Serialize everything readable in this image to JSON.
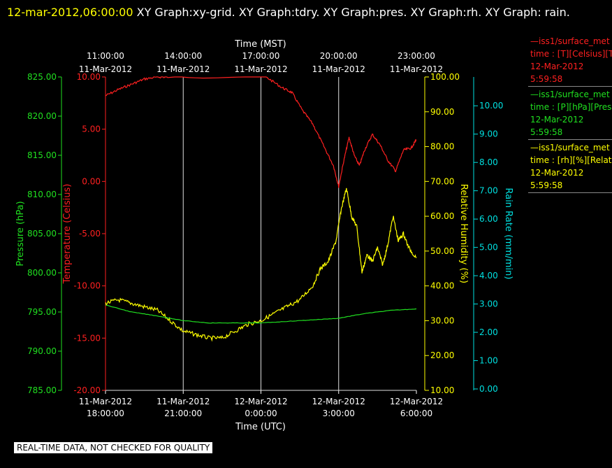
{
  "header": {
    "timestamp": "12-mar-2012,06:00:00",
    "titles": "XY Graph:xy-grid.  XY Graph:tdry.  XY Graph:pres.  XY Graph:rh.  XY Graph: rain."
  },
  "legend": [
    {
      "line1": "—iss1/surface_met",
      "line2": "time : [T][Celsius][T",
      "line3": "12-Mar-2012",
      "line4": "5:59:58",
      "color": "#ff2020"
    },
    {
      "line1": "—iss1/surface_met",
      "line2": "time : [P][hPa][Pres",
      "line3": "12-Mar-2012",
      "line4": "5:59:58",
      "color": "#20e020"
    },
    {
      "line1": "—iss1/surface_met",
      "line2": "time : [rh][%][Relati",
      "line3": "12-Mar-2012",
      "line4": "5:59:58",
      "color": "#ffff00"
    }
  ],
  "qc_note": "REAL-TIME DATA, NOT CHECKED FOR QUALITY",
  "chart_data": {
    "type": "line",
    "top_axis": {
      "title": "Time (MST)",
      "ticks": [
        {
          "time": "11:00:00",
          "date": "11-Mar-2012"
        },
        {
          "time": "14:00:00",
          "date": "11-Mar-2012"
        },
        {
          "time": "17:00:00",
          "date": "11-Mar-2012"
        },
        {
          "time": "20:00:00",
          "date": "11-Mar-2012"
        },
        {
          "time": "23:00:00",
          "date": "11-Mar-2012"
        }
      ]
    },
    "bottom_axis": {
      "title": "Time (UTC)",
      "xlim": [
        "2012-03-11 18:00:00",
        "2012-03-12 06:00:00"
      ],
      "ticks": [
        {
          "date": "11-Mar-2012",
          "time": "18:00:00"
        },
        {
          "date": "11-Mar-2012",
          "time": "21:00:00"
        },
        {
          "date": "12-Mar-2012",
          "time": "0:00:00"
        },
        {
          "date": "12-Mar-2012",
          "time": "3:00:00"
        },
        {
          "date": "12-Mar-2012",
          "time": "6:00:00"
        }
      ]
    },
    "x_units_note": "hours after 2012-03-11 18:00:00 UTC",
    "axes": {
      "pressure": {
        "label": "Pressure (hPa)",
        "color": "#20e020",
        "ylim": [
          785,
          825
        ],
        "ticks": [
          "785.00",
          "790.00",
          "795.00",
          "800.00",
          "805.00",
          "810.00",
          "815.00",
          "820.00",
          "825.00"
        ]
      },
      "temperature": {
        "label": "Temperature (Celsius)",
        "color": "#ff2020",
        "ylim": [
          -20,
          10
        ],
        "ticks": [
          "-20.00",
          "-15.00",
          "-10.00",
          "-5.00",
          "0.00",
          "5.00",
          "10.00"
        ]
      },
      "humidity": {
        "label": "Relative Humidity (%)",
        "color": "#ffff00",
        "ylim": [
          10,
          100
        ],
        "ticks": [
          "10.00",
          "20.00",
          "30.00",
          "40.00",
          "50.00",
          "60.00",
          "70.00",
          "80.00",
          "90.00",
          "100.00"
        ]
      },
      "rain": {
        "label": "Rain Rate (mm/min)",
        "color": "#00e0e0",
        "ylim": [
          0,
          10.5
        ],
        "ticks": [
          "0.00",
          "1.00",
          "2.00",
          "3.00",
          "4.00",
          "5.00",
          "6.00",
          "7.00",
          "8.00",
          "9.00",
          "10.00"
        ]
      }
    },
    "grid": true,
    "series": [
      {
        "key": "temperature",
        "color": "#ff2020",
        "x": [
          0,
          0.5,
          1.0,
          1.5,
          2.0,
          2.4,
          6.2,
          6.8,
          7.2,
          7.6,
          8.0,
          8.4,
          8.8,
          9.0,
          9.2,
          9.4,
          9.6,
          9.8,
          10.0,
          10.3,
          10.6,
          10.9,
          11.2,
          11.5,
          11.8,
          12.0
        ],
        "y": [
          8.2,
          8.8,
          9.3,
          9.8,
          10.0,
          10.0,
          10.0,
          9.0,
          8.5,
          6.8,
          5.5,
          3.5,
          1.5,
          -0.5,
          2.0,
          4.2,
          2.5,
          1.5,
          3.0,
          4.5,
          3.5,
          2.0,
          1.0,
          3.0,
          3.2,
          4.0
        ]
      },
      {
        "key": "humidity",
        "color": "#ffff00",
        "x": [
          0,
          0.5,
          1.0,
          1.5,
          2.0,
          2.5,
          3.0,
          3.5,
          4.0,
          4.5,
          5.0,
          5.5,
          6.0,
          6.5,
          7.0,
          7.5,
          8.0,
          8.3,
          8.6,
          8.9,
          9.1,
          9.3,
          9.5,
          9.7,
          9.9,
          10.1,
          10.3,
          10.5,
          10.7,
          10.9,
          11.1,
          11.3,
          11.5,
          11.7,
          12.0
        ],
        "y": [
          35,
          36,
          35,
          34,
          33,
          30,
          27,
          26,
          25,
          25,
          27,
          29,
          30,
          32,
          34,
          36,
          40,
          45,
          47,
          53,
          62,
          68,
          60,
          57,
          44,
          49,
          47,
          51,
          46,
          52,
          60,
          53,
          55,
          51,
          48
        ]
      },
      {
        "key": "pressure",
        "color": "#20e020",
        "x": [
          0,
          1,
          2,
          3,
          4,
          5,
          6,
          7,
          8,
          9,
          10,
          11,
          12
        ],
        "y": [
          795.9,
          795.0,
          794.5,
          793.9,
          793.6,
          793.6,
          793.6,
          793.8,
          794.0,
          794.2,
          794.8,
          795.2,
          795.4
        ]
      }
    ]
  }
}
